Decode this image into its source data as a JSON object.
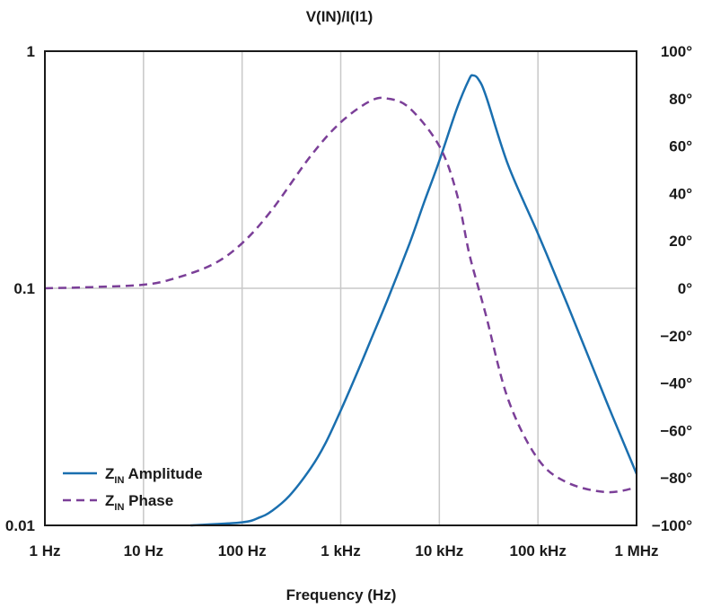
{
  "chart_data": {
    "type": "line",
    "title": "V(IN)/I(I1)",
    "xlabel": "Frequency (Hz)",
    "x_scale": "log",
    "xlim": [
      1,
      1000000
    ],
    "x_ticks": [
      {
        "value": 1,
        "label": "1 Hz"
      },
      {
        "value": 10,
        "label": "10 Hz"
      },
      {
        "value": 100,
        "label": "100 Hz"
      },
      {
        "value": 1000,
        "label": "1 kHz"
      },
      {
        "value": 10000,
        "label": "10 kHz"
      },
      {
        "value": 100000,
        "label": "100 kHz"
      },
      {
        "value": 1000000,
        "label": "1 MHz"
      }
    ],
    "y_left": {
      "scale": "log",
      "lim": [
        0.01,
        1
      ],
      "ticks": [
        {
          "value": 0.01,
          "label": "0.01"
        },
        {
          "value": 0.1,
          "label": "0.1"
        },
        {
          "value": 1,
          "label": "1"
        }
      ]
    },
    "y_right": {
      "scale": "linear",
      "lim": [
        -100,
        100
      ],
      "ticks": [
        {
          "value": 100,
          "label": "100°"
        },
        {
          "value": 80,
          "label": "80°"
        },
        {
          "value": 60,
          "label": "60°"
        },
        {
          "value": 40,
          "label": "40°"
        },
        {
          "value": 20,
          "label": "20°"
        },
        {
          "value": 0,
          "label": "0°"
        },
        {
          "value": -20,
          "label": "−20°"
        },
        {
          "value": -40,
          "label": "−40°"
        },
        {
          "value": -60,
          "label": "−60°"
        },
        {
          "value": -80,
          "label": "−80°"
        },
        {
          "value": -100,
          "label": "−100°"
        }
      ]
    },
    "grid": true,
    "legend_position": "bottom-left",
    "series": [
      {
        "name_main": "Z",
        "name_sub": "IN",
        "name_rest": " Amplitude",
        "axis": "left",
        "color": "#1a6faf",
        "style": "solid",
        "x": [
          30,
          100,
          150,
          200,
          300,
          500,
          700,
          1000,
          1500,
          2000,
          3000,
          5000,
          7000,
          10000,
          15000,
          20000,
          22000,
          25000,
          30000,
          50000,
          100000,
          200000,
          500000,
          1000000
        ],
        "y": [
          0.01,
          0.0103,
          0.0108,
          0.0115,
          0.0133,
          0.0175,
          0.0222,
          0.0305,
          0.045,
          0.06,
          0.09,
          0.155,
          0.23,
          0.345,
          0.57,
          0.76,
          0.79,
          0.76,
          0.64,
          0.33,
          0.17,
          0.085,
          0.033,
          0.0165
        ]
      },
      {
        "name_main": "Z",
        "name_sub": "IN",
        "name_rest": " Phase",
        "axis": "right",
        "color": "#7b3f98",
        "style": "dashed",
        "x": [
          1,
          3,
          10,
          20,
          50,
          100,
          200,
          500,
          1000,
          2000,
          3000,
          5000,
          10000,
          15000,
          20000,
          25000,
          30000,
          50000,
          100000,
          200000,
          500000,
          1000000
        ],
        "y": [
          0,
          0.5,
          1.5,
          4,
          10,
          19,
          33,
          56,
          70,
          79,
          80,
          76,
          60,
          40,
          15,
          0,
          -12,
          -47,
          -72,
          -82,
          -86,
          -84
        ]
      }
    ]
  }
}
